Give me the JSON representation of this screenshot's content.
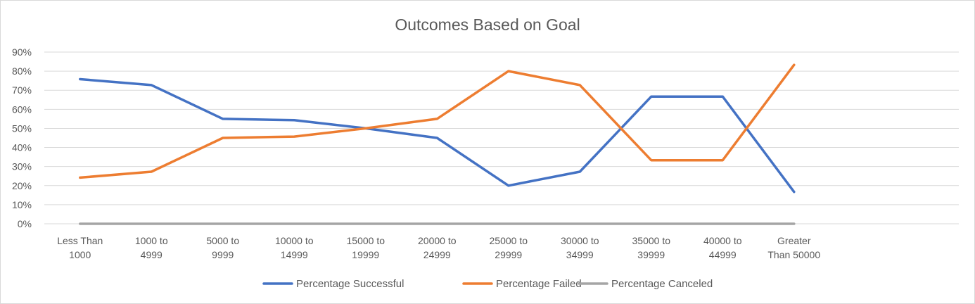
{
  "chart_data": {
    "type": "line",
    "title": "Outcomes Based on Goal",
    "xlabel": "",
    "ylabel": "",
    "categories": [
      [
        "Less Than",
        "1000"
      ],
      [
        "1000 to",
        "4999"
      ],
      [
        "5000 to",
        "9999"
      ],
      [
        "10000 to",
        "14999"
      ],
      [
        "15000 to",
        "19999"
      ],
      [
        "20000 to",
        "24999"
      ],
      [
        "25000 to",
        "29999"
      ],
      [
        "30000 to",
        "34999"
      ],
      [
        "35000 to",
        "39999"
      ],
      [
        "40000 to",
        "44999"
      ],
      [
        "Greater",
        "Than 50000"
      ]
    ],
    "y_ticks": [
      "0%",
      "10%",
      "20%",
      "30%",
      "40%",
      "50%",
      "60%",
      "70%",
      "80%",
      "90%"
    ],
    "ylim": [
      0,
      90
    ],
    "grid": true,
    "legend_position": "bottom",
    "series": [
      {
        "name": "Percentage Successful",
        "color": "#4472c4",
        "values": [
          75.8,
          72.7,
          55,
          54.3,
          50,
          45,
          20,
          27.3,
          66.7,
          66.7,
          16.7
        ]
      },
      {
        "name": "Percentage Failed",
        "color": "#ed7d31",
        "values": [
          24.2,
          27.3,
          45,
          45.7,
          50,
          55,
          80,
          72.7,
          33.3,
          33.3,
          83.3
        ]
      },
      {
        "name": "Percentage Canceled",
        "color": "#a5a5a5",
        "values": [
          0,
          0,
          0,
          0,
          0,
          0,
          0,
          0,
          0,
          0,
          0
        ]
      }
    ]
  }
}
